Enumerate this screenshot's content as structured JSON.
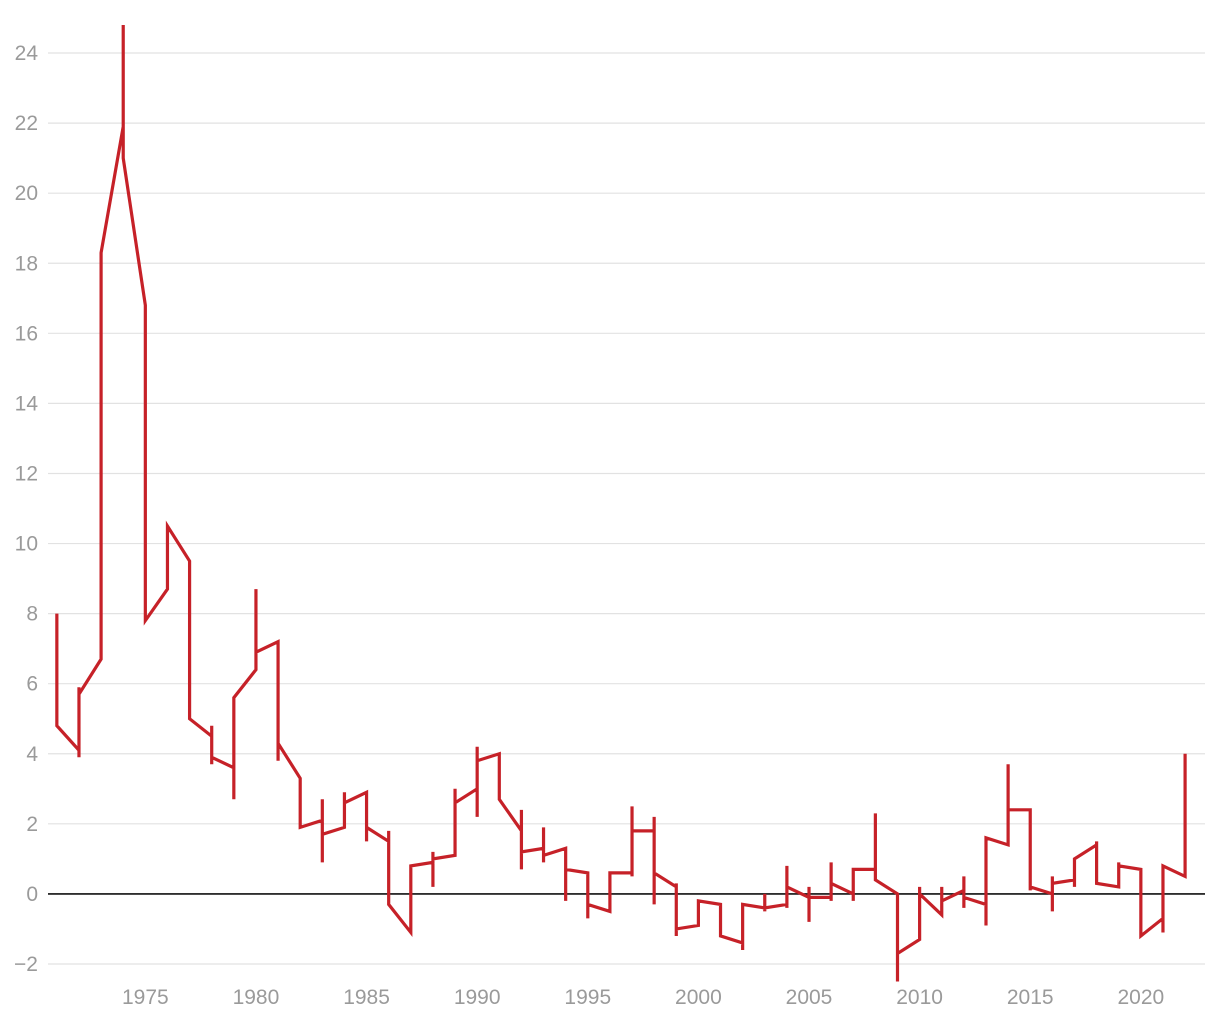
{
  "chart_data": {
    "type": "line",
    "title": "",
    "xlabel": "",
    "ylabel": "",
    "xlim": [
      1970.6,
      2022.9
    ],
    "ylim": [
      -2.6,
      25
    ],
    "x_ticks": [
      1975,
      1980,
      1985,
      1990,
      1995,
      2000,
      2005,
      2010,
      2015,
      2020
    ],
    "y_ticks": [
      -2,
      0,
      2,
      4,
      6,
      8,
      10,
      12,
      14,
      16,
      18,
      20,
      22,
      24
    ],
    "x_tick_labels": [
      "1975",
      "1980",
      "1985",
      "1990",
      "1995",
      "2000",
      "2005",
      "2010",
      "2015",
      "2020"
    ],
    "y_tick_labels": [
      "−2",
      "0",
      "2",
      "4",
      "6",
      "8",
      "10",
      "12",
      "14",
      "16",
      "18",
      "20",
      "22",
      "24"
    ],
    "grid": true,
    "zero_line": true,
    "legend": "none",
    "series": [
      {
        "color": "#c62128",
        "points": [
          [
            1971.0,
            8.0
          ],
          [
            1971.0,
            4.8
          ],
          [
            1972.0,
            4.1
          ],
          [
            1972.0,
            3.9
          ],
          [
            1972.0,
            5.9
          ],
          [
            1972.0,
            5.7
          ],
          [
            1973.0,
            6.7
          ],
          [
            1973.0,
            18.3
          ],
          [
            1974.0,
            21.9
          ],
          [
            1974.0,
            24.8
          ],
          [
            1974.0,
            21.0
          ],
          [
            1975.0,
            16.8
          ],
          [
            1975.0,
            7.8
          ],
          [
            1976.0,
            8.7
          ],
          [
            1976.0,
            10.5
          ],
          [
            1977.0,
            9.5
          ],
          [
            1977.0,
            5.0
          ],
          [
            1978.0,
            4.5
          ],
          [
            1978.0,
            4.8
          ],
          [
            1978.0,
            3.7
          ],
          [
            1978.0,
            3.9
          ],
          [
            1979.0,
            3.6
          ],
          [
            1979.0,
            2.7
          ],
          [
            1979.0,
            5.6
          ],
          [
            1980.0,
            6.4
          ],
          [
            1980.0,
            8.7
          ],
          [
            1980.0,
            6.9
          ],
          [
            1981.0,
            7.2
          ],
          [
            1981.0,
            3.8
          ],
          [
            1981.0,
            4.3
          ],
          [
            1982.0,
            3.3
          ],
          [
            1982.0,
            1.9
          ],
          [
            1983.0,
            2.1
          ],
          [
            1983.0,
            2.7
          ],
          [
            1983.0,
            0.9
          ],
          [
            1983.0,
            1.7
          ],
          [
            1984.0,
            1.9
          ],
          [
            1984.0,
            2.9
          ],
          [
            1984.0,
            2.6
          ],
          [
            1985.0,
            2.9
          ],
          [
            1985.0,
            1.5
          ],
          [
            1985.0,
            1.9
          ],
          [
            1986.0,
            1.5
          ],
          [
            1986.0,
            1.8
          ],
          [
            1986.0,
            -0.3
          ],
          [
            1987.0,
            -1.1
          ],
          [
            1987.0,
            0.8
          ],
          [
            1988.0,
            0.9
          ],
          [
            1988.0,
            1.2
          ],
          [
            1988.0,
            0.2
          ],
          [
            1988.0,
            1.0
          ],
          [
            1989.0,
            1.1
          ],
          [
            1989.0,
            3.0
          ],
          [
            1989.0,
            2.6
          ],
          [
            1990.0,
            3.0
          ],
          [
            1990.0,
            4.2
          ],
          [
            1990.0,
            2.2
          ],
          [
            1990.0,
            3.8
          ],
          [
            1991.0,
            4.0
          ],
          [
            1991.0,
            2.7
          ],
          [
            1992.0,
            1.8
          ],
          [
            1992.0,
            2.4
          ],
          [
            1992.0,
            0.7
          ],
          [
            1992.0,
            1.2
          ],
          [
            1993.0,
            1.3
          ],
          [
            1993.0,
            1.9
          ],
          [
            1993.0,
            0.9
          ],
          [
            1993.0,
            1.1
          ],
          [
            1994.0,
            1.3
          ],
          [
            1994.0,
            -0.2
          ],
          [
            1994.0,
            0.7
          ],
          [
            1995.0,
            0.6
          ],
          [
            1995.0,
            -0.7
          ],
          [
            1995.0,
            -0.3
          ],
          [
            1996.0,
            -0.5
          ],
          [
            1996.0,
            0.6
          ],
          [
            1997.0,
            0.6
          ],
          [
            1997.0,
            0.5
          ],
          [
            1997.0,
            2.5
          ],
          [
            1997.0,
            1.8
          ],
          [
            1998.0,
            1.8
          ],
          [
            1998.0,
            2.2
          ],
          [
            1998.0,
            -0.3
          ],
          [
            1998.0,
            0.6
          ],
          [
            1999.0,
            0.2
          ],
          [
            1999.0,
            0.3
          ],
          [
            1999.0,
            -1.2
          ],
          [
            1999.0,
            -1.0
          ],
          [
            2000.0,
            -0.9
          ],
          [
            2000.0,
            -0.2
          ],
          [
            2001.0,
            -0.3
          ],
          [
            2001.0,
            -1.2
          ],
          [
            2002.0,
            -1.4
          ],
          [
            2002.0,
            -1.6
          ],
          [
            2002.0,
            -0.3
          ],
          [
            2003.0,
            -0.4
          ],
          [
            2003.0,
            0.0
          ],
          [
            2003.0,
            -0.5
          ],
          [
            2003.0,
            -0.4
          ],
          [
            2004.0,
            -0.3
          ],
          [
            2004.0,
            0.8
          ],
          [
            2004.0,
            -0.4
          ],
          [
            2004.0,
            0.2
          ],
          [
            2005.0,
            -0.1
          ],
          [
            2005.0,
            0.2
          ],
          [
            2005.0,
            -0.8
          ],
          [
            2005.0,
            -0.1
          ],
          [
            2006.0,
            -0.1
          ],
          [
            2006.0,
            0.9
          ],
          [
            2006.0,
            -0.2
          ],
          [
            2006.0,
            0.3
          ],
          [
            2007.0,
            0.0
          ],
          [
            2007.0,
            -0.2
          ],
          [
            2007.0,
            0.7
          ],
          [
            2008.0,
            0.7
          ],
          [
            2008.0,
            2.3
          ],
          [
            2008.0,
            0.4
          ],
          [
            2009.0,
            0.0
          ],
          [
            2009.0,
            -2.5
          ],
          [
            2009.0,
            -1.7
          ],
          [
            2010.0,
            -1.3
          ],
          [
            2010.0,
            0.2
          ],
          [
            2010.0,
            0.0
          ],
          [
            2011.0,
            -0.6
          ],
          [
            2011.0,
            0.2
          ],
          [
            2011.0,
            -0.2
          ],
          [
            2012.0,
            0.1
          ],
          [
            2012.0,
            0.5
          ],
          [
            2012.0,
            -0.4
          ],
          [
            2012.0,
            -0.1
          ],
          [
            2013.0,
            -0.3
          ],
          [
            2013.0,
            -0.9
          ],
          [
            2013.0,
            1.6
          ],
          [
            2014.0,
            1.4
          ],
          [
            2014.0,
            3.7
          ],
          [
            2014.0,
            2.4
          ],
          [
            2015.0,
            2.4
          ],
          [
            2015.0,
            0.1
          ],
          [
            2015.0,
            0.2
          ],
          [
            2016.0,
            0.0
          ],
          [
            2016.0,
            -0.5
          ],
          [
            2016.0,
            0.5
          ],
          [
            2016.0,
            0.3
          ],
          [
            2017.0,
            0.4
          ],
          [
            2017.0,
            0.2
          ],
          [
            2017.0,
            1.0
          ],
          [
            2018.0,
            1.4
          ],
          [
            2018.0,
            1.5
          ],
          [
            2018.0,
            0.3
          ],
          [
            2019.0,
            0.2
          ],
          [
            2019.0,
            0.9
          ],
          [
            2019.0,
            0.8
          ],
          [
            2020.0,
            0.7
          ],
          [
            2020.0,
            -1.2
          ],
          [
            2021.0,
            -0.7
          ],
          [
            2021.0,
            -1.1
          ],
          [
            2021.0,
            0.8
          ],
          [
            2022.0,
            0.5
          ],
          [
            2022.0,
            4.0
          ]
        ]
      }
    ]
  }
}
